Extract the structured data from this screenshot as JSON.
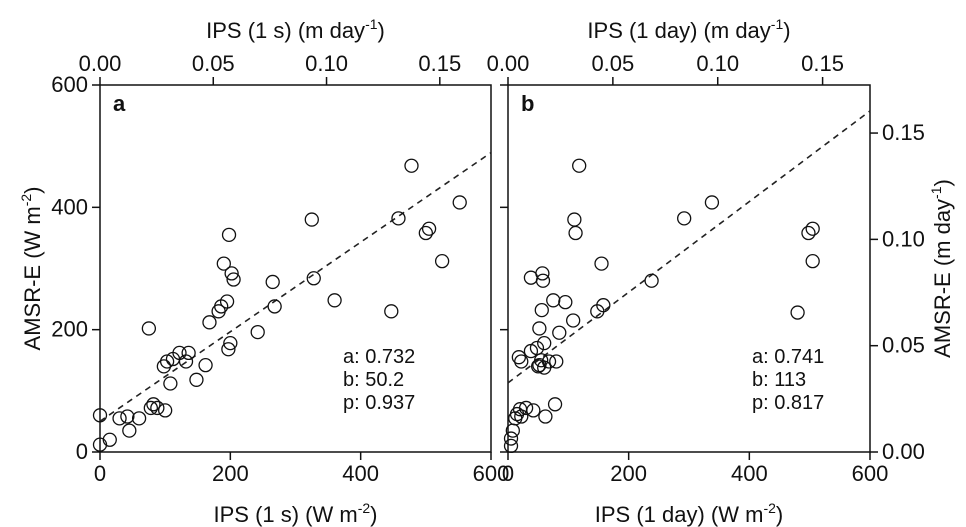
{
  "chart_data": [
    {
      "type": "scatter",
      "panel_label": "a",
      "x_unit": "W m-2",
      "y_unit": "W m-2",
      "xlabel": {
        "main": "IPS (1 s) (W m",
        "sup": "-2",
        "close": ")"
      },
      "x2label": {
        "main": "IPS (1 s) (m day",
        "sup": "-1",
        "close": ")"
      },
      "ylabel": {
        "main": "AMSR-E (W m",
        "sup": "-2",
        "close": ")"
      },
      "xlim": [
        0,
        600
      ],
      "ylim": [
        0,
        600
      ],
      "x2lim": [
        0,
        0.1726
      ],
      "xticks": [
        0,
        200,
        400,
        600
      ],
      "yticks": [
        0,
        200,
        400,
        600
      ],
      "x2ticks": [
        0.0,
        0.05,
        0.1,
        0.15
      ],
      "x2tick_labels": [
        "0.00",
        "0.05",
        "0.10",
        "0.15"
      ],
      "stats": [
        {
          "label": "a:",
          "value": "0.732"
        },
        {
          "label": "b:",
          "value": "50.2"
        },
        {
          "label": "p:",
          "value": "0.937"
        }
      ],
      "fit_line": {
        "intercept": 50.2,
        "slope": 0.732
      },
      "points": [
        [
          0,
          60
        ],
        [
          0,
          12
        ],
        [
          15,
          20
        ],
        [
          30,
          55
        ],
        [
          42,
          58
        ],
        [
          45,
          35
        ],
        [
          60,
          55
        ],
        [
          75,
          202
        ],
        [
          78,
          72
        ],
        [
          82,
          78
        ],
        [
          88,
          72
        ],
        [
          100,
          68
        ],
        [
          98,
          140
        ],
        [
          103,
          148
        ],
        [
          108,
          112
        ],
        [
          112,
          152
        ],
        [
          122,
          162
        ],
        [
          132,
          148
        ],
        [
          136,
          162
        ],
        [
          148,
          118
        ],
        [
          162,
          142
        ],
        [
          168,
          212
        ],
        [
          182,
          230
        ],
        [
          186,
          238
        ],
        [
          190,
          308
        ],
        [
          195,
          246
        ],
        [
          198,
          355
        ],
        [
          197,
          168
        ],
        [
          200,
          178
        ],
        [
          202,
          292
        ],
        [
          205,
          282
        ],
        [
          242,
          196
        ],
        [
          265,
          278
        ],
        [
          268,
          238
        ],
        [
          325,
          380
        ],
        [
          328,
          284
        ],
        [
          360,
          248
        ],
        [
          447,
          230
        ],
        [
          458,
          382
        ],
        [
          478,
          468
        ],
        [
          500,
          358
        ],
        [
          505,
          365
        ],
        [
          525,
          312
        ],
        [
          552,
          408
        ]
      ]
    },
    {
      "type": "scatter",
      "panel_label": "b",
      "x_unit": "W m-2",
      "y_unit": "W m-2",
      "xlabel": {
        "main": "IPS (1 day) (W m",
        "sup": "-2",
        "close": ")"
      },
      "x2label": {
        "main": "IPS (1 day) (m day",
        "sup": "-1",
        "close": ")"
      },
      "y2label": {
        "main": "AMSR-E (m day",
        "sup": "-1",
        "close": ")"
      },
      "xlim": [
        0,
        600
      ],
      "ylim": [
        0,
        600
      ],
      "x2lim": [
        0,
        0.1726
      ],
      "y2lim": [
        0,
        0.1726
      ],
      "xticks": [
        0,
        200,
        400,
        600
      ],
      "yticks": [
        0,
        200,
        400,
        600
      ],
      "x2ticks": [
        0.0,
        0.05,
        0.1,
        0.15
      ],
      "x2tick_labels": [
        "0.00",
        "0.05",
        "0.10",
        "0.15"
      ],
      "y2ticks": [
        0.0,
        0.05,
        0.1,
        0.15
      ],
      "y2tick_labels": [
        "0.00",
        "0.05",
        "0.10",
        "0.15"
      ],
      "stats": [
        {
          "label": "a:",
          "value": "0.741"
        },
        {
          "label": "b:",
          "value": "113"
        },
        {
          "label": "p:",
          "value": "0.817"
        }
      ],
      "fit_line": {
        "intercept": 113,
        "slope": 0.741
      },
      "points": [
        [
          5,
          10
        ],
        [
          5,
          22
        ],
        [
          8,
          35
        ],
        [
          12,
          55
        ],
        [
          15,
          62
        ],
        [
          18,
          155
        ],
        [
          20,
          70
        ],
        [
          22,
          148
        ],
        [
          22,
          58
        ],
        [
          30,
          72
        ],
        [
          38,
          285
        ],
        [
          38,
          165
        ],
        [
          42,
          68
        ],
        [
          48,
          170
        ],
        [
          50,
          140
        ],
        [
          52,
          202
        ],
        [
          52,
          142
        ],
        [
          55,
          150
        ],
        [
          56,
          232
        ],
        [
          57,
          292
        ],
        [
          58,
          280
        ],
        [
          60,
          178
        ],
        [
          60,
          138
        ],
        [
          62,
          58
        ],
        [
          68,
          148
        ],
        [
          75,
          248
        ],
        [
          78,
          78
        ],
        [
          80,
          148
        ],
        [
          85,
          195
        ],
        [
          95,
          245
        ],
        [
          108,
          215
        ],
        [
          110,
          380
        ],
        [
          112,
          358
        ],
        [
          118,
          468
        ],
        [
          148,
          230
        ],
        [
          155,
          308
        ],
        [
          158,
          240
        ],
        [
          238,
          280
        ],
        [
          292,
          382
        ],
        [
          338,
          408
        ],
        [
          480,
          228
        ],
        [
          498,
          358
        ],
        [
          505,
          365
        ],
        [
          505,
          312
        ]
      ]
    }
  ]
}
